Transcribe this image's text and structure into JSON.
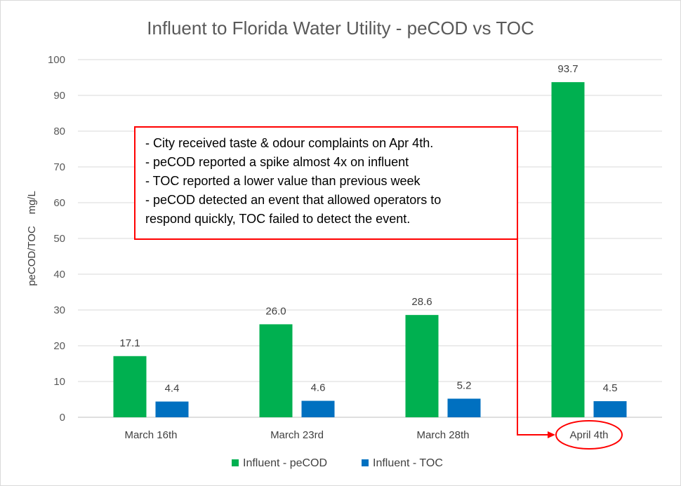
{
  "chart_data": {
    "type": "bar",
    "title": "Influent to Florida Water Utility - peCOD vs TOC",
    "ylabel": "peCOD/TOC    mg/L",
    "xlabel": "",
    "ylim": [
      0,
      100
    ],
    "yticks": [
      0,
      10,
      20,
      30,
      40,
      50,
      60,
      70,
      80,
      90,
      100
    ],
    "categories": [
      "March 16th",
      "March 23rd",
      "March 28th",
      "April 4th"
    ],
    "series": [
      {
        "name": "Influent - peCOD",
        "color": "#00b050",
        "values": [
          17.1,
          26.0,
          28.6,
          93.7
        ],
        "labels": [
          "17.1",
          "26.0",
          "28.6",
          "93.7"
        ]
      },
      {
        "name": "Influent - TOC",
        "color": "#0070c0",
        "values": [
          4.4,
          4.6,
          5.2,
          4.5
        ],
        "labels": [
          "4.4",
          "4.6",
          "5.2",
          "4.5"
        ]
      }
    ],
    "grid": true,
    "legend_position": "bottom",
    "annotation": {
      "lines": [
        "- City received taste & odour complaints on Apr 4th.",
        "- peCOD reported a spike almost 4x on influent",
        "- TOC reported a lower value than previous week",
        "- peCOD detected an event that allowed operators to",
        "respond quickly, TOC failed to detect the event."
      ],
      "color": "#ff0000",
      "highlight_category": "April 4th"
    }
  }
}
